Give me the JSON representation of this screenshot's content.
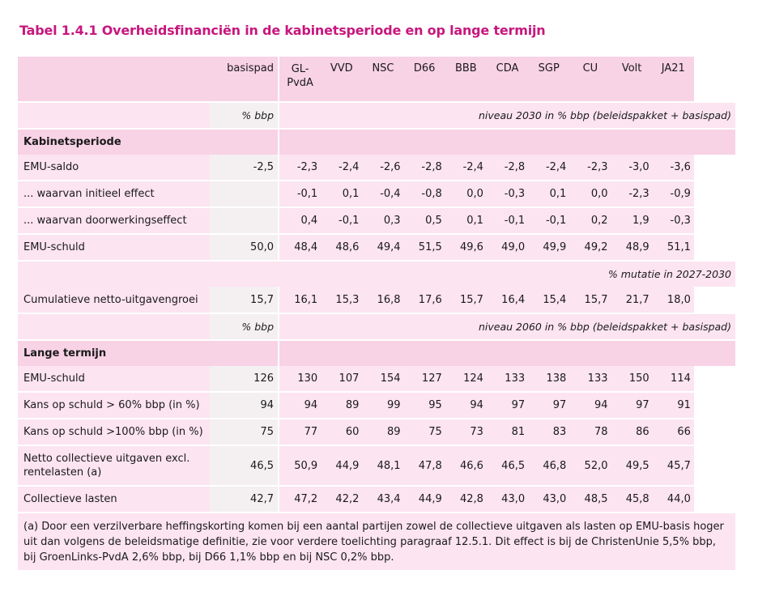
{
  "title": "Tabel 1.4.1 Overheidsfinanciën in de kabinetsperiode en op lange termijn",
  "header": {
    "basispad": "basispad",
    "parties": [
      "GL-PvdA",
      "VVD",
      "NSC",
      "D66",
      "BBB",
      "CDA",
      "SGP",
      "CU",
      "Volt",
      "JA21"
    ]
  },
  "units": {
    "pct_bbp": "% bbp",
    "niveau_2030": "niveau 2030 in % bbp (beleidspakket + basispad)",
    "mutatie": "% mutatie in 2027-2030",
    "niveau_2060": "niveau 2060 in % bbp (beleidspakket + basispad)"
  },
  "sections": {
    "kabinet": "Kabinetsperiode",
    "lange": "Lange termijn"
  },
  "rows_kabinet": [
    {
      "label": "EMU-saldo",
      "base": "-2,5",
      "values": [
        "-2,3",
        "-2,4",
        "-2,6",
        "-2,8",
        "-2,4",
        "-2,8",
        "-2,4",
        "-2,3",
        "-3,0",
        "-3,6"
      ]
    },
    {
      "label": "... waarvan initieel effect",
      "base": "",
      "values": [
        "-0,1",
        "0,1",
        "-0,4",
        "-0,8",
        "0,0",
        "-0,3",
        "0,1",
        "0,0",
        "-2,3",
        "-0,9"
      ]
    },
    {
      "label": "... waarvan doorwerkingseffect",
      "base": "",
      "values": [
        "0,4",
        "-0,1",
        "0,3",
        "0,5",
        "0,1",
        "-0,1",
        "-0,1",
        "0,2",
        "1,9",
        "-0,3"
      ]
    },
    {
      "label": "EMU-schuld",
      "base": "50,0",
      "values": [
        "48,4",
        "48,6",
        "49,4",
        "51,5",
        "49,6",
        "49,0",
        "49,9",
        "49,2",
        "48,9",
        "51,1"
      ]
    }
  ],
  "row_cumulatief": {
    "label": "Cumulatieve netto-uitgavengroei",
    "base": "15,7",
    "values": [
      "16,1",
      "15,3",
      "16,8",
      "17,6",
      "15,7",
      "16,4",
      "15,4",
      "15,7",
      "21,7",
      "18,0"
    ]
  },
  "rows_lange": [
    {
      "label": "EMU-schuld",
      "base": "126",
      "values": [
        "130",
        "107",
        "154",
        "127",
        "124",
        "133",
        "138",
        "133",
        "150",
        "114"
      ]
    },
    {
      "label": "Kans op schuld > 60% bbp (in %)",
      "base": "94",
      "values": [
        "94",
        "89",
        "99",
        "95",
        "94",
        "97",
        "97",
        "94",
        "97",
        "91"
      ]
    },
    {
      "label": "Kans op schuld >100% bbp (in %)",
      "base": "75",
      "values": [
        "77",
        "60",
        "89",
        "75",
        "73",
        "81",
        "83",
        "78",
        "86",
        "66"
      ]
    },
    {
      "label": "Netto collectieve uitgaven excl. rentelasten (a)",
      "base": "46,5",
      "values": [
        "50,9",
        "44,9",
        "48,1",
        "47,8",
        "46,6",
        "46,5",
        "46,8",
        "52,0",
        "49,5",
        "45,7"
      ]
    },
    {
      "label": "Collectieve lasten",
      "base": "42,7",
      "values": [
        "47,2",
        "42,2",
        "43,4",
        "44,9",
        "42,8",
        "43,0",
        "43,0",
        "48,5",
        "45,8",
        "44,0"
      ]
    }
  ],
  "footnote": "(a) Door een verzilverbare heffingskorting komen bij een aantal partijen zowel de collectieve uitgaven als lasten op EMU-basis hoger uit dan volgens de beleidsmatige definitie, zie voor verdere toelichting paragraaf 12.5.1. Dit effect is bij de ChristenUnie 5,5% bbp, bij GroenLinks-PvdA 2,6% bbp, bij D66 1,1% bbp en bij NSC 0,2% bbp.",
  "colors": {
    "title": "#c7177e",
    "light_pink": "#fce4f0",
    "mid_pink": "#f8d2e5",
    "grey": "#f4f0f2"
  }
}
